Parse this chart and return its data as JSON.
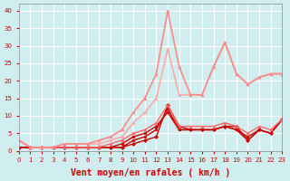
{
  "xlabel": "Vent moyen/en rafales ( km/h )",
  "xlim": [
    0,
    23
  ],
  "ylim": [
    0,
    42
  ],
  "yticks": [
    0,
    5,
    10,
    15,
    20,
    25,
    30,
    35,
    40
  ],
  "xticks": [
    0,
    1,
    2,
    3,
    4,
    5,
    6,
    7,
    8,
    9,
    10,
    11,
    12,
    13,
    14,
    15,
    16,
    17,
    18,
    19,
    20,
    21,
    22,
    23
  ],
  "bg_color": "#d0eef0",
  "grid_color": "#ffffff",
  "series": [
    {
      "x": [
        0,
        1,
        2,
        3,
        4,
        5,
        6,
        7,
        8,
        9,
        10,
        11,
        12,
        13,
        14,
        15,
        16,
        17,
        18,
        19,
        20,
        21,
        22,
        23
      ],
      "y": [
        1,
        1,
        1,
        1,
        1,
        1,
        1,
        1,
        1,
        1,
        2,
        3,
        4,
        13,
        7,
        6,
        6,
        6,
        7,
        7,
        3,
        6,
        5,
        9
      ],
      "color": "#cc0000",
      "lw": 1.0,
      "marker": "D",
      "ms": 2
    },
    {
      "x": [
        0,
        1,
        2,
        3,
        4,
        5,
        6,
        7,
        8,
        9,
        10,
        11,
        12,
        13,
        14,
        15,
        16,
        17,
        18,
        19,
        20,
        21,
        22,
        23
      ],
      "y": [
        1,
        1,
        1,
        1,
        1,
        1,
        1,
        1,
        1,
        1,
        3,
        4,
        6,
        12,
        6,
        6,
        6,
        6,
        7,
        6,
        3,
        6,
        5,
        9
      ],
      "color": "#cc0000",
      "lw": 1.0,
      "marker": "s",
      "ms": 2
    },
    {
      "x": [
        0,
        1,
        2,
        3,
        4,
        5,
        6,
        7,
        8,
        9,
        10,
        11,
        12,
        13,
        14,
        15,
        16,
        17,
        18,
        19,
        20,
        21,
        22,
        23
      ],
      "y": [
        1,
        1,
        1,
        1,
        1,
        1,
        1,
        1,
        1,
        2,
        4,
        5,
        7,
        11,
        6,
        6,
        6,
        6,
        7,
        6,
        4,
        6,
        5,
        9
      ],
      "color": "#cc0000",
      "lw": 1.0,
      "marker": "o",
      "ms": 2
    },
    {
      "x": [
        0,
        1,
        2,
        3,
        4,
        5,
        6,
        7,
        8,
        9,
        10,
        11,
        12,
        13,
        14,
        15,
        16,
        17,
        18,
        19,
        20,
        21,
        22,
        23
      ],
      "y": [
        3,
        1,
        1,
        1,
        1,
        1,
        1,
        1,
        2,
        3,
        5,
        6,
        8,
        13,
        7,
        7,
        7,
        7,
        8,
        7,
        5,
        7,
        6,
        9
      ],
      "color": "#ff6666",
      "lw": 1.0,
      "marker": "^",
      "ms": 2
    },
    {
      "x": [
        0,
        1,
        2,
        3,
        4,
        5,
        6,
        7,
        8,
        9,
        10,
        11,
        12,
        13,
        14,
        15,
        16,
        17,
        18,
        19,
        20,
        21,
        22,
        23
      ],
      "y": [
        3,
        1,
        1,
        1,
        2,
        2,
        2,
        2,
        3,
        4,
        8,
        11,
        15,
        29,
        16,
        16,
        16,
        24,
        31,
        22,
        19,
        21,
        22,
        22
      ],
      "color": "#ffaaaa",
      "lw": 1.2,
      "marker": "^",
      "ms": 2
    },
    {
      "x": [
        0,
        1,
        2,
        3,
        4,
        5,
        6,
        7,
        8,
        9,
        10,
        11,
        12,
        13,
        14,
        15,
        16,
        17,
        18,
        19,
        20,
        21,
        22,
        23
      ],
      "y": [
        3,
        1,
        1,
        1,
        2,
        2,
        2,
        3,
        4,
        6,
        11,
        15,
        22,
        40,
        24,
        16,
        16,
        24,
        31,
        22,
        19,
        21,
        22,
        22
      ],
      "color": "#ff8888",
      "lw": 1.2,
      "marker": "^",
      "ms": 2
    }
  ]
}
